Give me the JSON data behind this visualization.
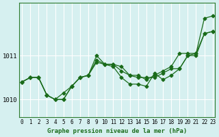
{
  "title": "Graphe pression niveau de la mer (hPa)",
  "background_color": "#d6f0f0",
  "grid_color": "#ffffff",
  "line_color": "#1a6b1a",
  "x_ticks": [
    0,
    1,
    2,
    3,
    4,
    5,
    6,
    7,
    8,
    9,
    10,
    11,
    12,
    13,
    14,
    15,
    16,
    17,
    18,
    19,
    20,
    21,
    22,
    23
  ],
  "y_ticks": [
    1010,
    1011
  ],
  "ylim": [
    1009.6,
    1012.2
  ],
  "xlim": [
    -0.3,
    23.3
  ],
  "series1": [
    1010.4,
    1010.5,
    1010.5,
    1010.1,
    1010.0,
    1010.0,
    1010.3,
    1010.5,
    1010.55,
    1010.85,
    1010.8,
    1010.8,
    1010.75,
    1010.55,
    1010.5,
    1010.5,
    1010.5,
    1010.6,
    1010.7,
    1010.7,
    1011.0,
    1011.0,
    1011.5,
    1011.55
  ],
  "series2": [
    1010.4,
    1010.5,
    1010.5,
    1010.1,
    1010.0,
    1010.0,
    1010.3,
    1010.5,
    1010.55,
    1010.9,
    1010.8,
    1010.75,
    1010.5,
    1010.35,
    1010.35,
    1010.3,
    1010.6,
    1010.45,
    1010.55,
    1010.7,
    1011.0,
    1011.05,
    1011.5,
    1011.55
  ],
  "series3": [
    1010.4,
    1010.5,
    1010.5,
    1010.1,
    1010.0,
    1010.15,
    1010.3,
    1010.5,
    1010.55,
    1011.0,
    1010.8,
    1010.8,
    1010.65,
    1010.55,
    1010.55,
    1010.45,
    1010.55,
    1010.65,
    1010.75,
    1011.05,
    1011.05,
    1011.05,
    1011.85,
    1011.9
  ]
}
